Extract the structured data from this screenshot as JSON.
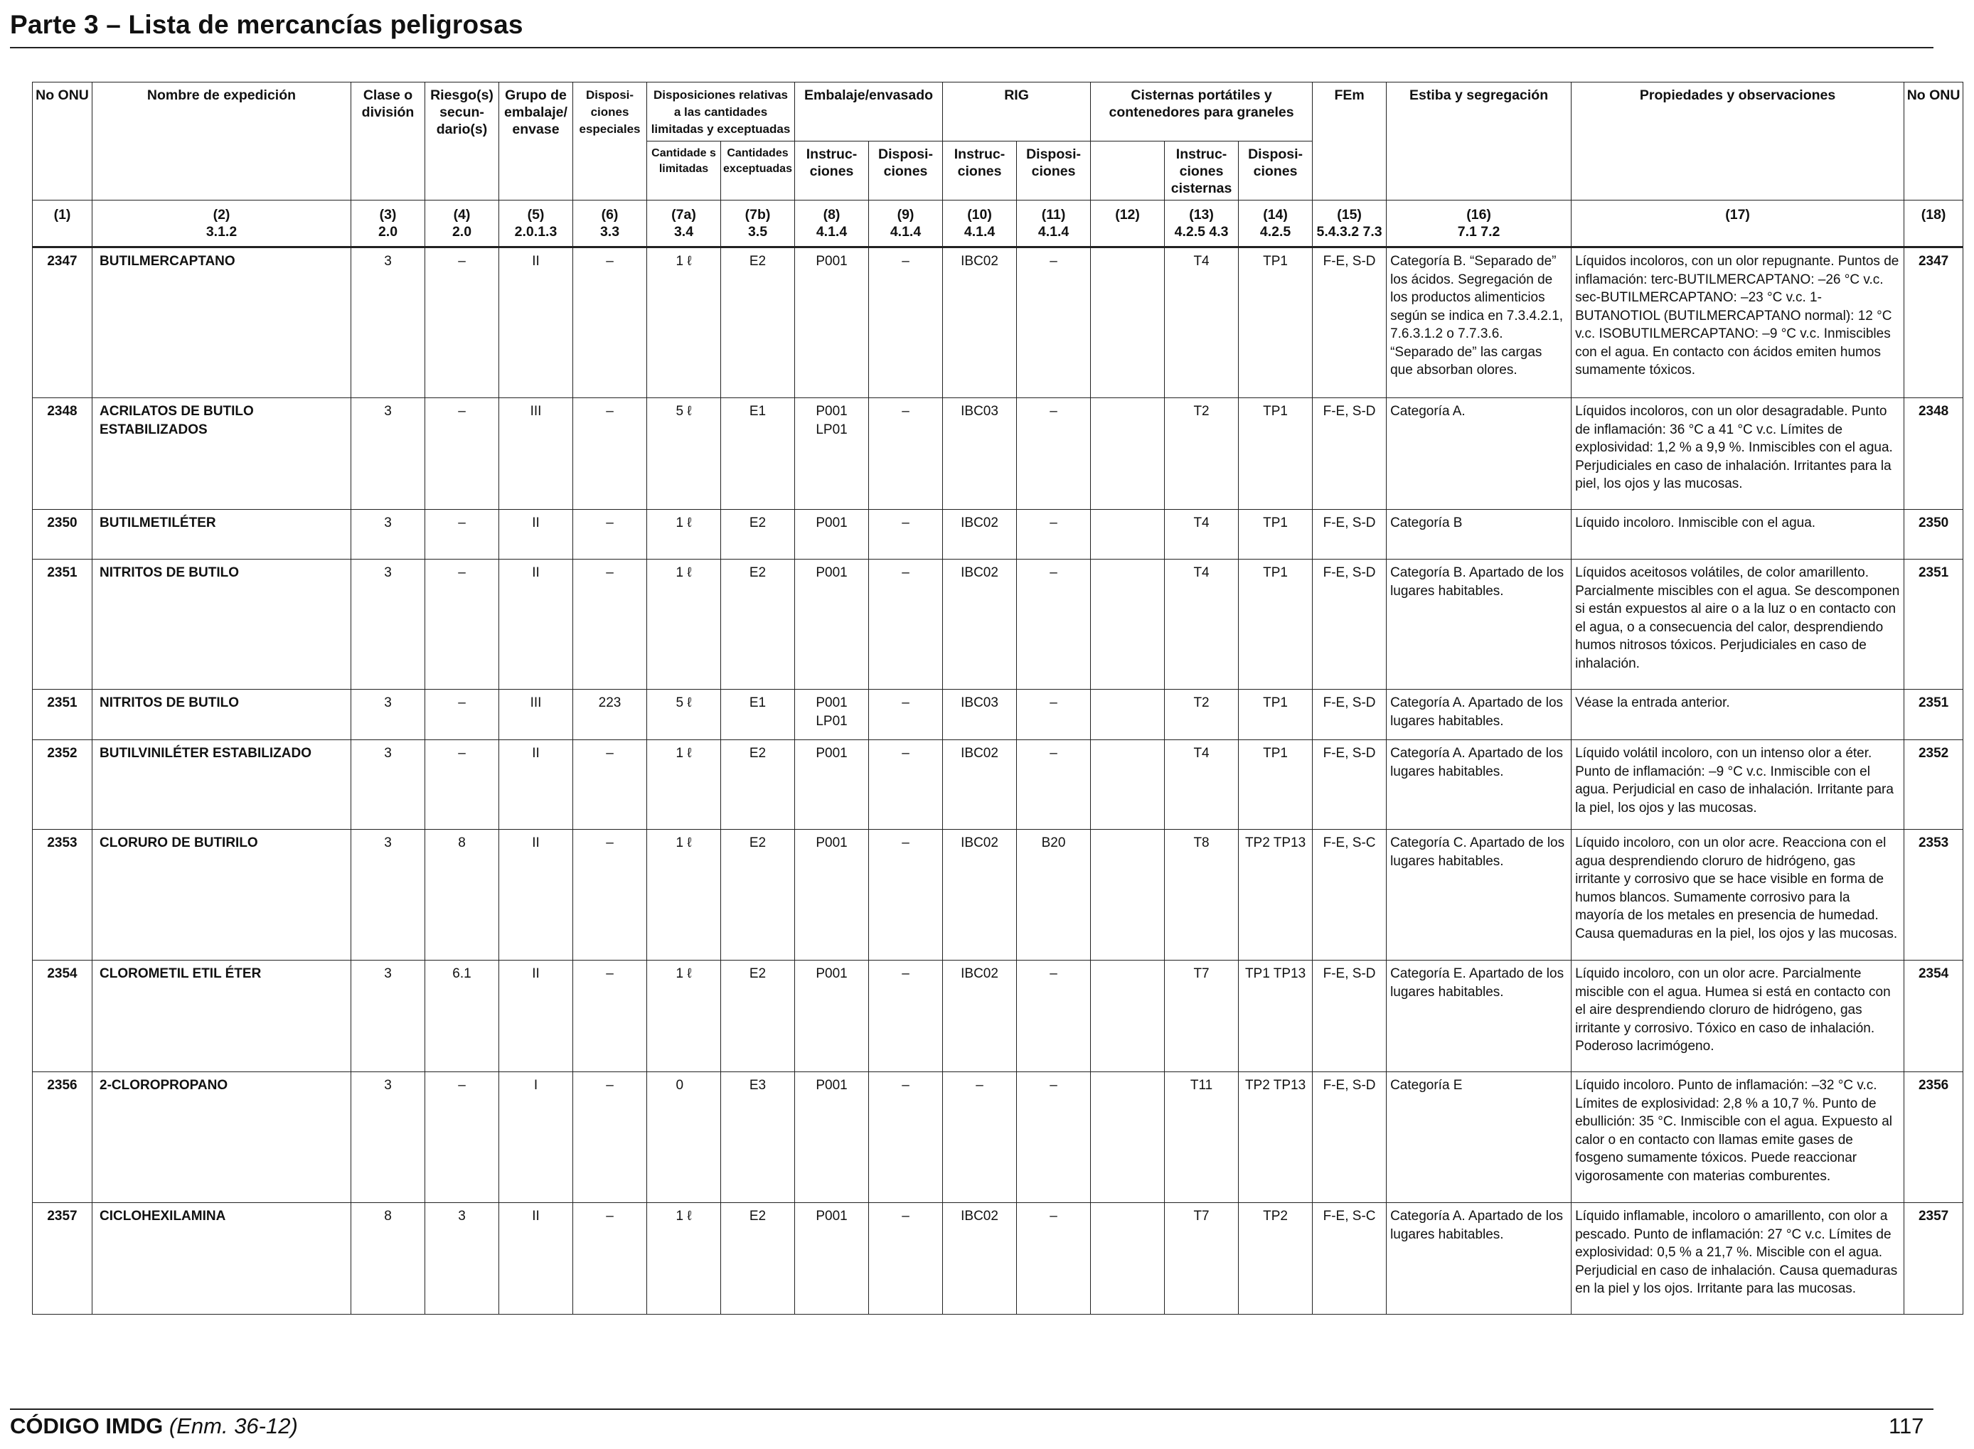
{
  "page": {
    "title": "Parte 3 – Lista de mercancías peligrosas",
    "footer_code": "CÓDIGO IMDG",
    "footer_edition": "(Enm. 36-12)",
    "page_number": "117"
  },
  "header": {
    "c1": "No ONU",
    "c2": "Nombre de expedición",
    "c3": "Clase o división",
    "c4": "Riesgo(s) secun-dario(s)",
    "c5": "Grupo de embalaje/ envase",
    "c6": "Disposi-ciones especiales",
    "c7": "Disposiciones relativas a las cantidades limitadas y exceptuadas",
    "c7a": "Cantidade s limitadas",
    "c7b": "Cantidades exceptuadas",
    "c8_9": "Embalaje/envasado",
    "c8": "Instruc-ciones",
    "c9": "Disposi-ciones",
    "c10_11": "RIG",
    "c10": "Instruc-ciones",
    "c11": "Disposi-ciones",
    "c12_14": "Cisternas portátiles y contenedores para graneles",
    "c13": "Instruc-ciones cisternas",
    "c14": "Disposi-ciones",
    "c15": "FEm",
    "c16": "Estiba y segregación",
    "c17": "Propiedades y observaciones",
    "c18": "No ONU"
  },
  "colnums": [
    {
      "n": "(1)",
      "r": ""
    },
    {
      "n": "(2)",
      "r": "3.1.2"
    },
    {
      "n": "(3)",
      "r": "2.0"
    },
    {
      "n": "(4)",
      "r": "2.0"
    },
    {
      "n": "(5)",
      "r": "2.0.1.3"
    },
    {
      "n": "(6)",
      "r": "3.3"
    },
    {
      "n": "(7a)",
      "r": "3.4"
    },
    {
      "n": "(7b)",
      "r": "3.5"
    },
    {
      "n": "(8)",
      "r": "4.1.4"
    },
    {
      "n": "(9)",
      "r": "4.1.4"
    },
    {
      "n": "(10)",
      "r": "4.1.4"
    },
    {
      "n": "(11)",
      "r": "4.1.4"
    },
    {
      "n": "(12)",
      "r": ""
    },
    {
      "n": "(13)",
      "r": "4.2.5 4.3"
    },
    {
      "n": "(14)",
      "r": "4.2.5"
    },
    {
      "n": "(15)",
      "r": "5.4.3.2 7.3"
    },
    {
      "n": "(16)",
      "r": "7.1 7.2"
    },
    {
      "n": "(17)",
      "r": ""
    },
    {
      "n": "(18)",
      "r": ""
    }
  ],
  "rows": [
    {
      "un": "2347",
      "name": "BUTILMERCAPTANO",
      "cls": "3",
      "sub": "–",
      "pg": "II",
      "sp": "–",
      "lq": "1 ℓ",
      "eq": "E2",
      "pi": "P001",
      "pp": "–",
      "ibc": "IBC02",
      "ibcp": "–",
      "c12": "",
      "tank": "T4",
      "tankp": "TP1",
      "ems": "F-E, S-D",
      "stow": "Categoría B. “Separado de” los ácidos. Segregación de los productos alimenticios según se indica en 7.3.4.2.1, 7.6.3.1.2 o 7.7.3.6. “Separado de” las cargas que absorban olores.",
      "prop": "Líquidos incoloros, con un olor repugnante. Puntos de inflamación: terc-BUTILMERCAPTANO: –26 °C v.c. sec-BUTILMERCAPTANO: –23 °C v.c. 1-BUTANOTIOL (BUTILMERCAPTANO normal): 12 °C v.c. ISOBUTILMERCAPTANO: –9 °C v.c. Inmiscibles con el agua. En contacto con ácidos emiten humos sumamente tóxicos."
    },
    {
      "un": "2348",
      "name": "ACRILATOS DE BUTILO ESTABILIZADOS",
      "cls": "3",
      "sub": "–",
      "pg": "III",
      "sp": "–",
      "lq": "5 ℓ",
      "eq": "E1",
      "pi": "P001 LP01",
      "pp": "–",
      "ibc": "IBC03",
      "ibcp": "–",
      "c12": "",
      "tank": "T2",
      "tankp": "TP1",
      "ems": "F-E, S-D",
      "stow": "Categoría A.",
      "prop": "Líquidos incoloros, con un olor desagradable. Punto de inflamación: 36 °C a 41 °C v.c. Límites de explosividad: 1,2 % a 9,9 %. Inmiscibles con el agua. Perjudiciales en caso de inhalación. Irritantes para la piel, los ojos y las mucosas."
    },
    {
      "un": "2350",
      "name": "BUTILMETILÉTER",
      "cls": "3",
      "sub": "–",
      "pg": "II",
      "sp": "–",
      "lq": "1 ℓ",
      "eq": "E2",
      "pi": "P001",
      "pp": "–",
      "ibc": "IBC02",
      "ibcp": "–",
      "c12": "",
      "tank": "T4",
      "tankp": "TP1",
      "ems": "F-E, S-D",
      "stow": "Categoría B",
      "prop": "Líquido incoloro. Inmiscible con el agua."
    },
    {
      "un": "2351",
      "name": "NITRITOS DE BUTILO",
      "cls": "3",
      "sub": "–",
      "pg": "II",
      "sp": "–",
      "lq": "1 ℓ",
      "eq": "E2",
      "pi": "P001",
      "pp": "–",
      "ibc": "IBC02",
      "ibcp": "–",
      "c12": "",
      "tank": "T4",
      "tankp": "TP1",
      "ems": "F-E, S-D",
      "stow": "Categoría B. Apartado de los lugares habitables.",
      "prop": "Líquidos aceitosos volátiles, de color amarillento. Parcialmente miscibles con el agua. Se descomponen si están expuestos al aire o a la luz o en contacto con el agua, o a consecuencia del calor, desprendiendo humos nitrosos tóxicos. Perjudiciales en caso de inhalación."
    },
    {
      "un": "2351",
      "name": "NITRITOS DE BUTILO",
      "cls": "3",
      "sub": "–",
      "pg": "III",
      "sp": "223",
      "lq": "5 ℓ",
      "eq": "E1",
      "pi": "P001 LP01",
      "pp": "–",
      "ibc": "IBC03",
      "ibcp": "–",
      "c12": "",
      "tank": "T2",
      "tankp": "TP1",
      "ems": "F-E, S-D",
      "stow": "Categoría A. Apartado de los lugares habitables.",
      "prop": "Véase la entrada anterior."
    },
    {
      "un": "2352",
      "name": "BUTILVINILÉTER ESTABILIZADO",
      "cls": "3",
      "sub": "–",
      "pg": "II",
      "sp": "–",
      "lq": "1 ℓ",
      "eq": "E2",
      "pi": "P001",
      "pp": "–",
      "ibc": "IBC02",
      "ibcp": "–",
      "c12": "",
      "tank": "T4",
      "tankp": "TP1",
      "ems": "F-E, S-D",
      "stow": "Categoría A. Apartado de los lugares habitables.",
      "prop": "Líquido volátil incoloro, con un intenso olor a éter. Punto de inflamación: –9 °C v.c. Inmiscible con el agua. Perjudicial en caso de inhalación. Irritante para la piel, los ojos y las mucosas."
    },
    {
      "un": "2353",
      "name": "CLORURO DE BUTIRILO",
      "cls": "3",
      "sub": "8",
      "pg": "II",
      "sp": "–",
      "lq": "1 ℓ",
      "eq": "E2",
      "pi": "P001",
      "pp": "–",
      "ibc": "IBC02",
      "ibcp": "B20",
      "c12": "",
      "tank": "T8",
      "tankp": "TP2 TP13",
      "ems": "F-E, S-C",
      "stow": "Categoría C. Apartado de los lugares habitables.",
      "prop": "Líquido incoloro, con un olor acre. Reacciona con el agua desprendiendo cloruro de hidrógeno, gas irritante y corrosivo que se hace visible en forma de humos blancos. Sumamente corrosivo para la mayoría de los metales en presencia de humedad. Causa quemaduras en la piel, los ojos y las mucosas."
    },
    {
      "un": "2354",
      "name": "CLOROMETIL ETIL ÉTER",
      "cls": "3",
      "sub": "6.1",
      "pg": "II",
      "sp": "–",
      "lq": "1 ℓ",
      "eq": "E2",
      "pi": "P001",
      "pp": "–",
      "ibc": "IBC02",
      "ibcp": "–",
      "c12": "",
      "tank": "T7",
      "tankp": "TP1 TP13",
      "ems": "F-E, S-D",
      "stow": "Categoría E. Apartado de los lugares habitables.",
      "prop": "Líquido incoloro, con un olor acre. Parcialmente miscible con el agua. Humea si está en contacto con el aire desprendiendo cloruro de hidrógeno, gas irritante y corrosivo. Tóxico en caso de inhalación. Poderoso lacrimógeno."
    },
    {
      "un": "2356",
      "name": "2-CLOROPROPANO",
      "cls": "3",
      "sub": "–",
      "pg": "I",
      "sp": "–",
      "lq": "0",
      "eq": "E3",
      "pi": "P001",
      "pp": "–",
      "ibc": "–",
      "ibcp": "–",
      "c12": "",
      "tank": "T11",
      "tankp": "TP2 TP13",
      "ems": "F-E, S-D",
      "stow": "Categoría E",
      "prop": "Líquido incoloro. Punto de inflamación: –32 °C v.c. Límites de explosividad: 2,8 % a 10,7 %. Punto de ebullición: 35 °C. Inmiscible con el agua. Expuesto al calor o en contacto con llamas emite gases de fosgeno sumamente tóxicos. Puede reaccionar vigorosamente con materias comburentes."
    },
    {
      "un": "2357",
      "name": "CICLOHEXILAMINA",
      "cls": "8",
      "sub": "3",
      "pg": "II",
      "sp": "–",
      "lq": "1 ℓ",
      "eq": "E2",
      "pi": "P001",
      "pp": "–",
      "ibc": "IBC02",
      "ibcp": "–",
      "c12": "",
      "tank": "T7",
      "tankp": "TP2",
      "ems": "F-E, S-C",
      "stow": "Categoría A. Apartado de los lugares habitables.",
      "prop": "Líquido inflamable, incoloro o amarillento, con olor a pescado. Punto de inflamación: 27 °C v.c. Límites de explosividad: 0,5 % a 21,7 %. Miscible con el agua. Perjudicial en caso de inhalación. Causa quemaduras en la piel y los ojos. Irritante para las mucosas."
    }
  ]
}
